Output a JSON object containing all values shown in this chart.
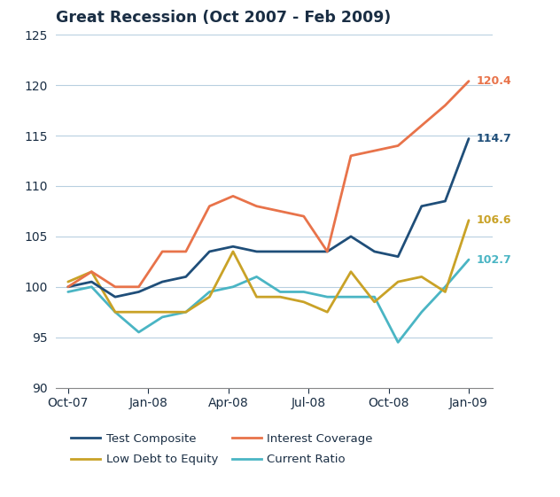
{
  "title": "Great Recession (Oct 2007 - Feb 2009)",
  "background_color": "#ffffff",
  "text_color": "#1a2e44",
  "grid_color": "#b8cfe0",
  "axis_color": "#888888",
  "x_labels": [
    "Oct-07",
    "Jan-08",
    "Apr-08",
    "Jul-08",
    "Oct-08",
    "Jan-09"
  ],
  "ylim": [
    90,
    125
  ],
  "yticks": [
    90,
    95,
    100,
    105,
    110,
    115,
    120,
    125
  ],
  "series": {
    "Test Composite": {
      "color": "#1f4e79",
      "linewidth": 2.0,
      "values": [
        100.0,
        100.5,
        99.0,
        99.5,
        100.5,
        101.0,
        103.5,
        104.0,
        103.5,
        103.5,
        103.5,
        103.5,
        105.0,
        103.5,
        103.0,
        108.0,
        108.5,
        114.7
      ]
    },
    "Low Debt to Equity": {
      "color": "#c9a227",
      "linewidth": 2.0,
      "values": [
        100.5,
        101.5,
        97.5,
        97.5,
        97.5,
        97.5,
        99.0,
        103.5,
        99.0,
        99.0,
        98.5,
        97.5,
        101.5,
        98.5,
        100.5,
        101.0,
        99.5,
        106.6
      ]
    },
    "Interest Coverage": {
      "color": "#e8734a",
      "linewidth": 2.0,
      "values": [
        100.0,
        101.5,
        100.0,
        100.0,
        103.5,
        103.5,
        108.0,
        109.0,
        108.0,
        107.5,
        107.0,
        103.5,
        113.0,
        113.5,
        114.0,
        116.0,
        118.0,
        120.4
      ]
    },
    "Current Ratio": {
      "color": "#4ab5c4",
      "linewidth": 2.0,
      "values": [
        99.5,
        100.0,
        97.5,
        95.5,
        97.0,
        97.5,
        99.5,
        100.0,
        101.0,
        99.5,
        99.5,
        99.0,
        99.0,
        99.0,
        94.5,
        97.5,
        100.0,
        102.7
      ]
    }
  },
  "end_labels": {
    "Test Composite": "114.7",
    "Low Debt to Equity": "106.6",
    "Interest Coverage": "120.4",
    "Current Ratio": "102.7"
  },
  "legend_order": [
    "Test Composite",
    "Low Debt to Equity",
    "Interest Coverage",
    "Current Ratio"
  ],
  "legend_row1": [
    "Test Composite",
    "Low Debt to Equity"
  ],
  "legend_row2": [
    "Interest Coverage",
    "Current Ratio"
  ]
}
